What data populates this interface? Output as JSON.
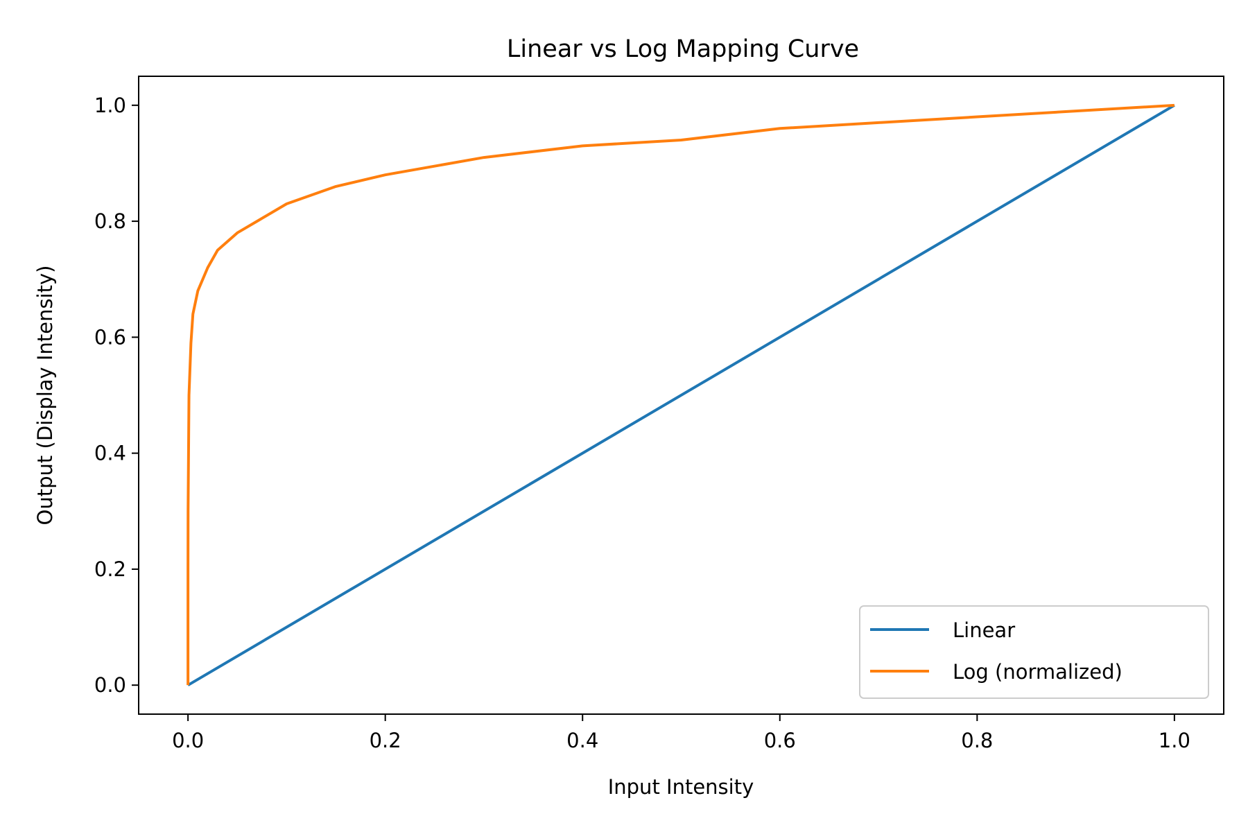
{
  "chart_data": {
    "type": "line",
    "title": "Linear vs Log Mapping Curve",
    "xlabel": "Input Intensity",
    "ylabel": "Output (Display Intensity)",
    "xlim": [
      -0.05,
      1.05
    ],
    "ylim": [
      -0.05,
      1.05
    ],
    "xticks": [
      "0.0",
      "0.2",
      "0.4",
      "0.6",
      "0.8",
      "1.0"
    ],
    "yticks": [
      "0.0",
      "0.2",
      "0.4",
      "0.6",
      "0.8",
      "1.0"
    ],
    "grid": false,
    "legend_position": "lower-right",
    "series": [
      {
        "name": "Linear",
        "color": "#1f77b4",
        "x": [
          0.0,
          1.0
        ],
        "y": [
          0.0,
          1.0
        ]
      },
      {
        "name": "Log (normalized)",
        "color": "#ff7f0e",
        "x": [
          0.0,
          1e-07,
          1e-06,
          1e-05,
          0.0001,
          0.001,
          0.003,
          0.005,
          0.01,
          0.02,
          0.03,
          0.05,
          0.07,
          0.1,
          0.15,
          0.2,
          0.3,
          0.4,
          0.5,
          0.6,
          0.7,
          0.8,
          0.9,
          1.0
        ],
        "y": [
          0.0,
          0.001,
          0.1,
          0.2,
          0.3,
          0.5,
          0.59,
          0.64,
          0.68,
          0.72,
          0.75,
          0.78,
          0.8,
          0.83,
          0.86,
          0.88,
          0.91,
          0.93,
          0.94,
          0.96,
          0.97,
          0.98,
          0.99,
          1.0
        ]
      }
    ]
  }
}
